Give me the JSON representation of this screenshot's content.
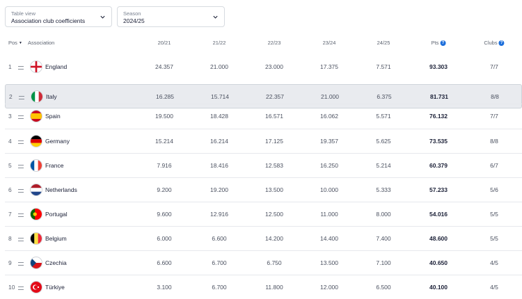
{
  "filters": {
    "table_view": {
      "label": "Table view",
      "value": "Association club coefficients"
    },
    "season": {
      "label": "Season",
      "value": "2024/25"
    }
  },
  "columns": {
    "pos": "Pos",
    "association": "Association",
    "s2021": "20/21",
    "s2122": "21/22",
    "s2223": "22/23",
    "s2324": "23/24",
    "s2425": "24/25",
    "pts": "Pts",
    "clubs": "Clubs"
  },
  "rows": [
    {
      "pos": "1",
      "name": "England",
      "flag": "england-flag-icon",
      "s2021": "24.357",
      "s2122": "21.000",
      "s2223": "23.000",
      "s2324": "17.375",
      "s2425": "7.571",
      "pts": "93.303",
      "clubs": "7/7"
    },
    {
      "pos": "2",
      "name": "Italy",
      "flag": "italy-flag-icon",
      "s2021": "16.285",
      "s2122": "15.714",
      "s2223": "22.357",
      "s2324": "21.000",
      "s2425": "6.375",
      "pts": "81.731",
      "clubs": "8/8"
    },
    {
      "pos": "3",
      "name": "Spain",
      "flag": "spain-flag-icon",
      "s2021": "19.500",
      "s2122": "18.428",
      "s2223": "16.571",
      "s2324": "16.062",
      "s2425": "5.571",
      "pts": "76.132",
      "clubs": "7/7"
    },
    {
      "pos": "4",
      "name": "Germany",
      "flag": "germany-flag-icon",
      "s2021": "15.214",
      "s2122": "16.214",
      "s2223": "17.125",
      "s2324": "19.357",
      "s2425": "5.625",
      "pts": "73.535",
      "clubs": "8/8"
    },
    {
      "pos": "5",
      "name": "France",
      "flag": "france-flag-icon",
      "s2021": "7.916",
      "s2122": "18.416",
      "s2223": "12.583",
      "s2324": "16.250",
      "s2425": "5.214",
      "pts": "60.379",
      "clubs": "6/7"
    },
    {
      "pos": "6",
      "name": "Netherlands",
      "flag": "netherlands-flag-icon",
      "s2021": "9.200",
      "s2122": "19.200",
      "s2223": "13.500",
      "s2324": "10.000",
      "s2425": "5.333",
      "pts": "57.233",
      "clubs": "5/6"
    },
    {
      "pos": "7",
      "name": "Portugal",
      "flag": "portugal-flag-icon",
      "s2021": "9.600",
      "s2122": "12.916",
      "s2223": "12.500",
      "s2324": "11.000",
      "s2425": "8.000",
      "pts": "54.016",
      "clubs": "5/5"
    },
    {
      "pos": "8",
      "name": "Belgium",
      "flag": "belgium-flag-icon",
      "s2021": "6.000",
      "s2122": "6.600",
      "s2223": "14.200",
      "s2324": "14.400",
      "s2425": "7.400",
      "pts": "48.600",
      "clubs": "5/5"
    },
    {
      "pos": "9",
      "name": "Czechia",
      "flag": "czechia-flag-icon",
      "s2021": "6.600",
      "s2122": "6.700",
      "s2223": "6.750",
      "s2324": "13.500",
      "s2425": "7.100",
      "pts": "40.650",
      "clubs": "4/5"
    },
    {
      "pos": "10",
      "name": "Türkiye",
      "flag": "turkiye-flag-icon",
      "s2021": "3.100",
      "s2122": "6.700",
      "s2223": "11.800",
      "s2324": "12.000",
      "s2425": "6.500",
      "pts": "40.100",
      "clubs": "4/5"
    }
  ],
  "highlighted_row": "2",
  "colors": {
    "accent": "#1d6fdb",
    "highlight": "#e9ebef",
    "text": "#1a1f36"
  }
}
